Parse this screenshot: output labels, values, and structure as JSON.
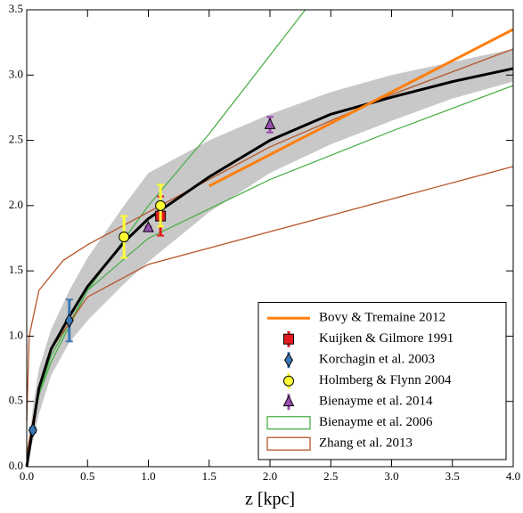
{
  "chart_data": {
    "type": "line",
    "xlabel": "z [kpc]",
    "xlim": [
      0,
      4.0
    ],
    "ylim": [
      0,
      3.5
    ],
    "xticks": [
      {
        "value": 0,
        "label": "0.0"
      },
      0.5,
      {
        "value": 1,
        "label": "1.0"
      },
      1.5,
      {
        "value": 2,
        "label": "2.0"
      },
      2.5,
      {
        "value": 3,
        "label": "3.0"
      },
      3.5,
      {
        "value": 4,
        "label": "4.0"
      }
    ],
    "yticks": [
      {
        "value": 0,
        "label": "0.0"
      },
      0.5,
      {
        "value": 1,
        "label": "1.0"
      },
      1.5,
      {
        "value": 2,
        "label": "2.0"
      },
      2.5,
      {
        "value": 3,
        "label": "3.0"
      },
      3.5
    ],
    "band": {
      "color": "#c8c8c8",
      "x": [
        0,
        0.05,
        0.1,
        0.2,
        0.35,
        0.5,
        0.8,
        1.0,
        1.5,
        2.0,
        2.5,
        3.0,
        3.5,
        4.0
      ],
      "upper": [
        0,
        0.45,
        0.75,
        1.05,
        1.35,
        1.6,
        2.0,
        2.25,
        2.5,
        2.7,
        2.87,
        3.0,
        3.1,
        3.2
      ],
      "lower": [
        0,
        0.2,
        0.4,
        0.7,
        0.95,
        1.12,
        1.4,
        1.57,
        1.95,
        2.25,
        2.47,
        2.65,
        2.82,
        2.95
      ]
    },
    "model": {
      "color": "#000000",
      "x": [
        0,
        0.05,
        0.1,
        0.2,
        0.35,
        0.5,
        0.8,
        1.0,
        1.5,
        2.0,
        2.5,
        3.0,
        3.5,
        4.0
      ],
      "values": [
        0,
        0.3,
        0.6,
        0.9,
        1.15,
        1.38,
        1.72,
        1.9,
        2.22,
        2.5,
        2.7,
        2.83,
        2.95,
        3.05
      ]
    },
    "legend": "lower right",
    "series": [
      {
        "name": "Bovy & Tremaine 2012",
        "color": "#ff7f0e",
        "style": "line",
        "x": [
          1.5,
          4.0
        ],
        "values": [
          2.15,
          3.35
        ]
      },
      {
        "name": "Kuijken & Gilmore 1991",
        "color": "#e31a1c",
        "style": "points",
        "marker": "square",
        "x": [
          1.1
        ],
        "values": [
          1.92
        ],
        "errors": [
          0.15
        ]
      },
      {
        "name": "Korchagin et al. 2003",
        "color": "#3a78b5",
        "style": "points",
        "marker": "diamond",
        "x": [
          0.05,
          0.35
        ],
        "values": [
          0.28,
          1.12
        ],
        "errors": [
          0.02,
          0.16
        ]
      },
      {
        "name": "Holmberg & Flynn 2004",
        "color": "#ffff33",
        "style": "points",
        "marker": "circle",
        "x": [
          0.8,
          1.1
        ],
        "values": [
          1.76,
          2.0
        ],
        "errors": [
          0.16,
          0.16
        ]
      },
      {
        "name": "Bienayme et al. 2014",
        "color": "#9b4fb0",
        "style": "points",
        "marker": "triangle",
        "x": [
          1.0,
          2.0
        ],
        "values": [
          1.83,
          2.62
        ],
        "errors": [
          0.01,
          0.06
        ]
      },
      {
        "name": "Bienayme et al. 2006",
        "color": "#4daf4a",
        "style": "curves",
        "curves": [
          {
            "x": [
              0,
              0.1,
              0.2,
              0.5,
              1.0,
              1.5,
              2.29
            ],
            "values": [
              0.1,
              0.55,
              0.8,
              1.35,
              2.0,
              2.55,
              3.5
            ]
          },
          {
            "x": [
              0,
              0.1,
              0.2,
              0.5,
              1.0,
              2.0,
              3.0,
              4.0
            ],
            "values": [
              0.1,
              0.55,
              0.85,
              1.35,
              1.75,
              2.2,
              2.57,
              2.92
            ]
          }
        ]
      },
      {
        "name": "Zhang et al. 2013",
        "color": "#b5562a",
        "style": "curves",
        "curves": [
          {
            "x": [
              0,
              0.02,
              0.1,
              0.3,
              0.5,
              1.0,
              2.0,
              3.0,
              4.0
            ],
            "values": [
              0.35,
              1.0,
              1.35,
              1.58,
              1.7,
              1.95,
              2.45,
              2.85,
              3.2
            ]
          },
          {
            "x": [
              0,
              0.1,
              0.2,
              0.5,
              1.0,
              2.0,
              3.0,
              4.0
            ],
            "values": [
              0.1,
              0.6,
              0.9,
              1.3,
              1.55,
              1.8,
              2.05,
              2.3
            ]
          }
        ]
      }
    ]
  }
}
